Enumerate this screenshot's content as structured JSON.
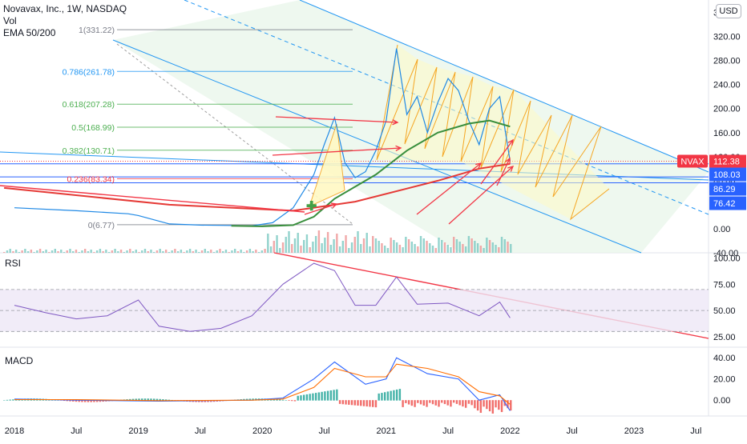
{
  "header": {
    "symbol_line": "Novavax, Inc., 1W, NASDAQ",
    "indicators": [
      "Vol",
      "EMA 50/200"
    ],
    "currency": "USD"
  },
  "panes": {
    "rsi_label": "RSI",
    "macd_label": "MACD"
  },
  "colors": {
    "channel_line": "#2196f3",
    "channel_fill": "#e8f5e9",
    "price_line": "#1e88e5",
    "ema_fast": "#388e3c",
    "ema_slow": "#e53935",
    "trend_arrow": "#f23645",
    "pattern_fill": "#fff9c4",
    "pattern_line": "#f5a623",
    "rsi_band": "#ede7f6",
    "macd_line": "#2962ff",
    "signal_line": "#ff6d00",
    "hist_pos": "#26a69a",
    "hist_neg": "#ef5350"
  },
  "chart_data": [
    {
      "type": "line",
      "pane": "price",
      "title": "Novavax, Inc., 1W, NASDAQ",
      "y_ticks": [
        "360.00",
        "320.00",
        "280.00",
        "240.00",
        "200.00",
        "160.00",
        "120.00",
        "80.00",
        "40.00",
        "0.00",
        "-40.00"
      ],
      "ylim": [
        -40,
        370
      ],
      "x_ticks": [
        "2018",
        "Jul",
        "2019",
        "Jul",
        "2020",
        "Jul",
        "2021",
        "Jul",
        "2022",
        "Jul",
        "2023",
        "Jul"
      ],
      "series": [
        {
          "name": "NVAX",
          "values": [
            [
              "2018-01",
              35
            ],
            [
              "2018-07",
              30
            ],
            [
              "2018-12",
              25
            ],
            [
              "2019-01",
              22
            ],
            [
              "2019-04",
              8
            ],
            [
              "2019-07",
              6
            ],
            [
              "2019-12",
              5
            ],
            [
              "2020-02",
              10
            ],
            [
              "2020-04",
              35
            ],
            [
              "2020-06",
              90
            ],
            [
              "2020-07",
              140
            ],
            [
              "2020-08",
              185
            ],
            [
              "2020-09",
              110
            ],
            [
              "2020-10",
              85
            ],
            [
              "2020-11",
              95
            ],
            [
              "2020-12",
              130
            ],
            [
              "2021-01",
              180
            ],
            [
              "2021-02",
              300
            ],
            [
              "2021-03",
              190
            ],
            [
              "2021-04",
              220
            ],
            [
              "2021-05",
              160
            ],
            [
              "2021-06",
              210
            ],
            [
              "2021-07",
              250
            ],
            [
              "2021-08",
              230
            ],
            [
              "2021-09",
              180
            ],
            [
              "2021-10",
              140
            ],
            [
              "2021-11",
              200
            ],
            [
              "2021-12",
              220
            ],
            [
              "2022-01",
              112.38
            ]
          ]
        },
        {
          "name": "",
          "values": [
            [
              "2019-10",
              5
            ],
            [
              "2020-01",
              4
            ],
            [
              "2020-04",
              6
            ],
            [
              "2020-06",
              20
            ],
            [
              "2020-08",
              50
            ],
            [
              "2020-10",
              70
            ],
            [
              "2020-12",
              90
            ],
            [
              "2021-03",
              130
            ],
            [
              "2021-06",
              160
            ],
            [
              "2021-09",
              175
            ],
            [
              "2021-11",
              180
            ],
            [
              "2022-01",
              170
            ]
          ]
        },
        {
          "name": "",
          "values": [
            [
              "2017-12",
              68
            ],
            [
              "2019-04",
              40
            ],
            [
              "2020-04",
              30
            ],
            [
              "2020-10",
              45
            ],
            [
              "2021-06",
              80
            ],
            [
              "2021-10",
              100
            ],
            [
              "2022-01",
              108
            ]
          ]
        }
      ],
      "fib_levels": [
        {
          "label": "1(331.22)",
          "value": 331.22
        },
        {
          "label": "0.786(261.78)",
          "value": 261.78
        },
        {
          "label": "0.618(207.28)",
          "value": 207.28
        },
        {
          "label": "0.5(168.99)",
          "value": 168.99
        },
        {
          "label": "0.382(130.71)",
          "value": 130.71
        },
        {
          "label": "0.236(83.34)",
          "value": 83.34
        },
        {
          "label": "0(6.77)",
          "value": 6.77
        }
      ],
      "price_labels": [
        {
          "text": "NVAX",
          "value": 112.38
        },
        {
          "text": "112.38",
          "value": 112.38
        },
        {
          "text": "108.03",
          "value": 108.03
        },
        {
          "text": "86.29",
          "value": 86.29
        },
        {
          "text": "76.42",
          "value": 76.42
        }
      ]
    },
    {
      "type": "line",
      "pane": "rsi",
      "title": "RSI",
      "y_ticks": [
        "100.00",
        "75.00",
        "50.00",
        "25.00"
      ],
      "ylim": [
        15,
        105
      ],
      "band": [
        30,
        70
      ],
      "series": [
        {
          "name": "",
          "values": [
            [
              "2018-01",
              55
            ],
            [
              "2018-04",
              48
            ],
            [
              "2018-07",
              42
            ],
            [
              "2018-10",
              45
            ],
            [
              "2019-01",
              60
            ],
            [
              "2019-03",
              35
            ],
            [
              "2019-06",
              30
            ],
            [
              "2019-09",
              33
            ],
            [
              "2019-12",
              45
            ],
            [
              "2020-03",
              75
            ],
            [
              "2020-06",
              95
            ],
            [
              "2020-08",
              88
            ],
            [
              "2020-10",
              55
            ],
            [
              "2020-12",
              55
            ],
            [
              "2021-02",
              82
            ],
            [
              "2021-04",
              56
            ],
            [
              "2021-07",
              57
            ],
            [
              "2021-10",
              45
            ],
            [
              "2021-12",
              58
            ],
            [
              "2022-01",
              43
            ]
          ]
        }
      ]
    },
    {
      "type": "bar",
      "pane": "macd",
      "title": "MACD",
      "y_ticks": [
        "40.00",
        "20.00",
        "0.00"
      ],
      "ylim": [
        -15,
        50
      ],
      "series": [
        {
          "name": "",
          "values": [
            [
              "2018-01",
              1
            ],
            [
              "2018-07",
              0
            ],
            [
              "2019-03",
              -1
            ],
            [
              "2019-12",
              0
            ],
            [
              "2020-03",
              2
            ],
            [
              "2020-06",
              20
            ],
            [
              "2020-08",
              36
            ],
            [
              "2020-11",
              15
            ],
            [
              "2021-01",
              20
            ],
            [
              "2021-02",
              40
            ],
            [
              "2021-05",
              25
            ],
            [
              "2021-08",
              20
            ],
            [
              "2021-10",
              0
            ],
            [
              "2021-12",
              5
            ],
            [
              "2022-01",
              -10
            ]
          ]
        },
        {
          "name": "",
          "values": [
            [
              "2018-01",
              0.5
            ],
            [
              "2018-07",
              0.5
            ],
            [
              "2019-03",
              -0.5
            ],
            [
              "2019-12",
              0
            ],
            [
              "2020-03",
              1
            ],
            [
              "2020-06",
              12
            ],
            [
              "2020-08",
              30
            ],
            [
              "2020-11",
              22
            ],
            [
              "2021-01",
              22
            ],
            [
              "2021-02",
              34
            ],
            [
              "2021-05",
              30
            ],
            [
              "2021-08",
              22
            ],
            [
              "2021-10",
              8
            ],
            [
              "2021-12",
              4
            ],
            [
              "2022-01",
              -4
            ]
          ]
        }
      ]
    }
  ]
}
